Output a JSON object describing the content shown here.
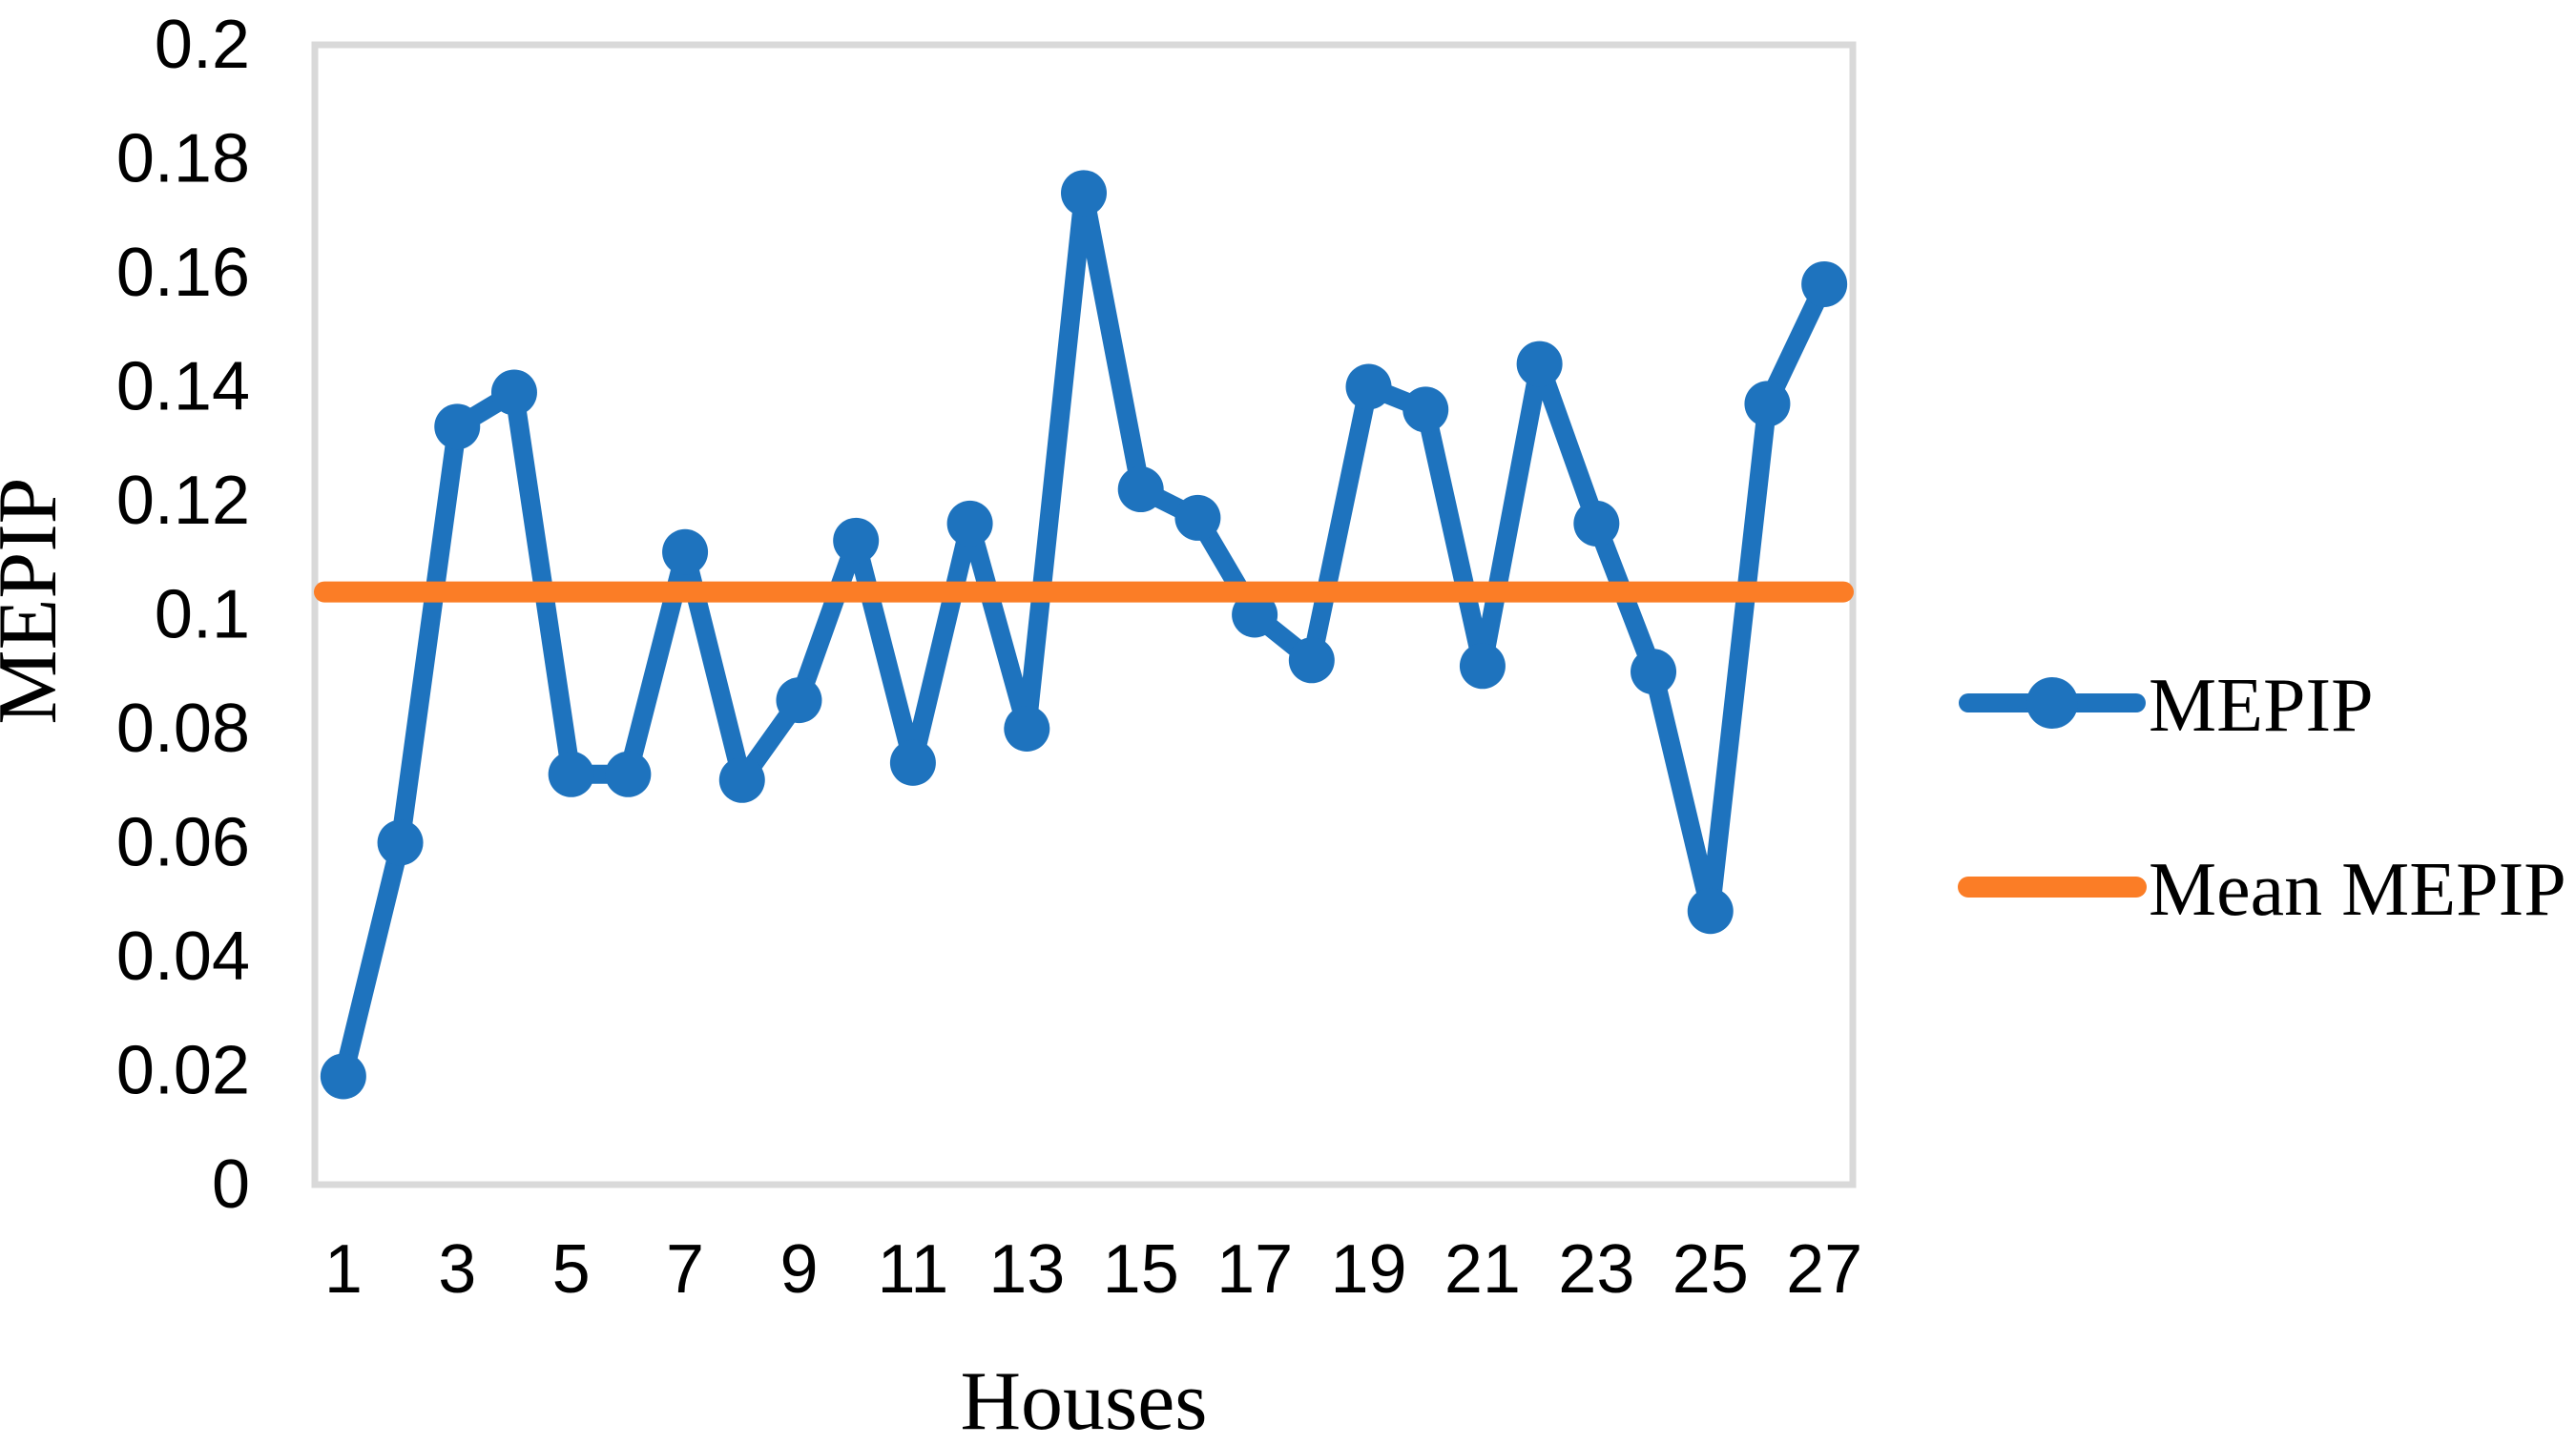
{
  "figure": {
    "background": "#FFFFFF",
    "plot_border_color": "#D9D9D9",
    "text_color": "#000000"
  },
  "chart_data": {
    "type": "line",
    "title": "",
    "xlabel": "Houses",
    "ylabel": "MEPIP",
    "categories": [
      1,
      2,
      3,
      4,
      5,
      6,
      7,
      8,
      9,
      10,
      11,
      12,
      13,
      14,
      15,
      16,
      17,
      18,
      19,
      20,
      21,
      22,
      23,
      24,
      25,
      26,
      27
    ],
    "series": [
      {
        "name": "MEPIP",
        "type": "line",
        "color": "#1E73BE",
        "marker": "circle",
        "values": [
          0.019,
          0.06,
          0.133,
          0.139,
          0.072,
          0.072,
          0.111,
          0.071,
          0.085,
          0.113,
          0.074,
          0.116,
          0.08,
          0.174,
          0.122,
          0.117,
          0.1,
          0.092,
          0.14,
          0.136,
          0.091,
          0.144,
          0.116,
          0.09,
          0.048,
          0.137,
          0.158
        ]
      },
      {
        "name": "Mean MEPIP",
        "type": "hline",
        "color": "#FB7D26",
        "value": 0.104
      }
    ],
    "ylim": [
      0,
      0.2
    ],
    "ytick_values": [
      0,
      0.02,
      0.04,
      0.06,
      0.08,
      0.1,
      0.12,
      0.14,
      0.16,
      0.18,
      0.2
    ],
    "ytick_labels": [
      "0",
      "0.02",
      "0.04",
      "0.06",
      "0.08",
      "0.1",
      "0.12",
      "0.14",
      "0.16",
      "0.18",
      "0.2"
    ],
    "xtick_labels": [
      "1",
      "3",
      "5",
      "7",
      "9",
      "11",
      "13",
      "15",
      "17",
      "19",
      "21",
      "23",
      "25",
      "27"
    ],
    "grid": false,
    "legend_position": "right"
  },
  "legend": {
    "items": [
      {
        "label": "MEPIP",
        "swatch": "line-with-marker",
        "color": "#1E73BE"
      },
      {
        "label": "Mean MEPIP",
        "swatch": "line",
        "color": "#FB7D26"
      }
    ]
  }
}
